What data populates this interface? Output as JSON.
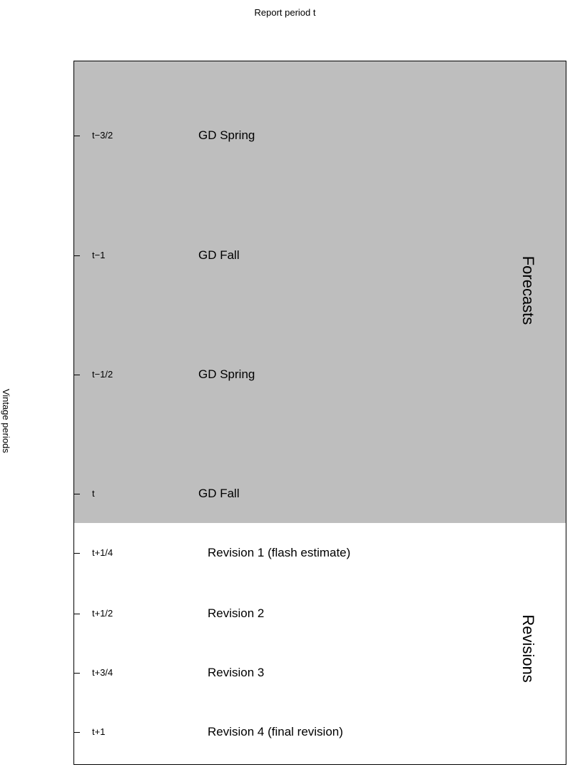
{
  "title": "Report period t",
  "ylabel": "Vintage periods",
  "colors": {
    "forecast_fill": "#bebebe",
    "revision_fill": "#ffffff",
    "frame": "#000000"
  },
  "groups": [
    {
      "label": "Forecasts"
    },
    {
      "label": "Revisions"
    }
  ],
  "rows": [
    {
      "period": "t−3/2",
      "label": "GD Spring"
    },
    {
      "period": "t−1",
      "label": "GD Fall"
    },
    {
      "period": "t−1/2",
      "label": "GD Spring"
    },
    {
      "period": "t",
      "label": "GD Fall"
    },
    {
      "period": "t+1/4",
      "label": "Revision 1 (flash estimate)"
    },
    {
      "period": "t+1/2",
      "label": "Revision 2"
    },
    {
      "period": "t+3/4",
      "label": "Revision 3"
    },
    {
      "period": "t+1",
      "label": "Revision 4 (final revision)"
    }
  ]
}
